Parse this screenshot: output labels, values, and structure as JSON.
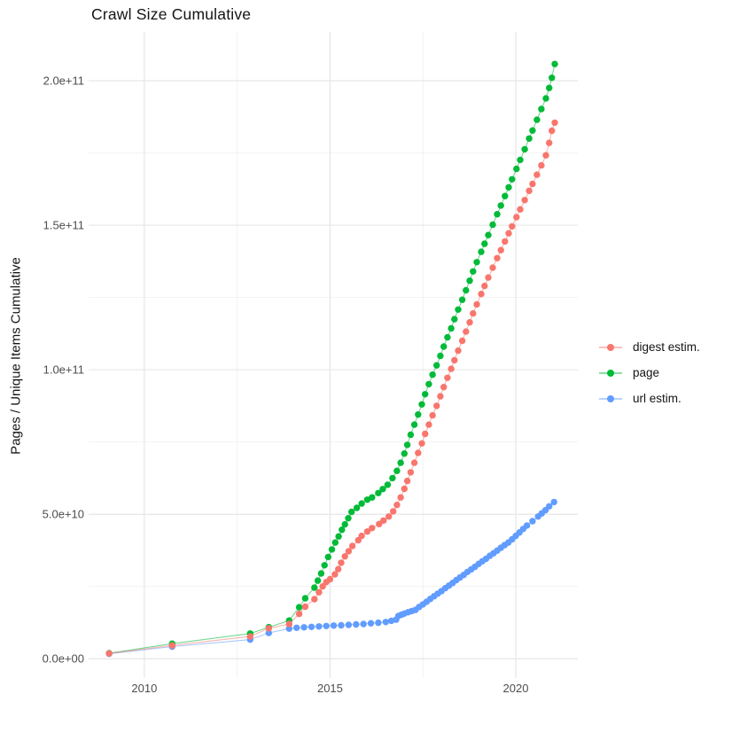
{
  "title": "Crawl Size Cumulative",
  "y_axis": {
    "title": "Pages / Unique Items Cumulative",
    "ticks": [
      {
        "label": "0.0e+00",
        "value_billions": 0
      },
      {
        "label": "5.0e+10",
        "value_billions": 50
      },
      {
        "label": "1.0e+11",
        "value_billions": 100
      },
      {
        "label": "1.5e+11",
        "value_billions": 150
      },
      {
        "label": "2.0e+11",
        "value_billions": 200
      }
    ],
    "minor_values_billions": [
      25,
      75,
      125,
      175
    ]
  },
  "x_axis": {
    "ticks": [
      {
        "label": "2010",
        "value": 2010
      },
      {
        "label": "2015",
        "value": 2015
      },
      {
        "label": "2020",
        "value": 2020
      }
    ],
    "minor_values": [
      2012.5,
      2017.5
    ]
  },
  "legend": {
    "items": [
      {
        "label": "digest estim.",
        "color": "#F8766D"
      },
      {
        "label": "page",
        "color": "#00BA38"
      },
      {
        "label": "url estim.",
        "color": "#619CFF"
      }
    ]
  },
  "colors": {
    "grid_major": "#E4E4E4",
    "grid_minor": "#EFEFEF",
    "tick_text": "#4D4D4D",
    "text": "#141414",
    "background": "#FFFFFF"
  },
  "chart_data": {
    "type": "scatter",
    "title": "Crawl Size Cumulative",
    "xlabel": "",
    "ylabel": "Pages / Unique Items Cumulative",
    "x_unit": "year",
    "value_unit": "pages, billions (1e9)",
    "xlim": [
      2008.5,
      2021.67
    ],
    "ylim_billions": [
      -6.7,
      216.9
    ],
    "grid": "on",
    "legend_position": "right",
    "marker": "point",
    "series": [
      {
        "name": "page",
        "color": "#00BA38",
        "points": [
          [
            2009.05,
            1.9
          ],
          [
            2010.75,
            5.2
          ],
          [
            2012.85,
            8.7
          ],
          [
            2013.35,
            10.9
          ],
          [
            2013.9,
            13.2
          ],
          [
            2014.17,
            17.8
          ],
          [
            2014.33,
            20.9
          ],
          [
            2014.58,
            24.6
          ],
          [
            2014.67,
            27.0
          ],
          [
            2014.76,
            29.5
          ],
          [
            2014.85,
            32.3
          ],
          [
            2014.95,
            35.2
          ],
          [
            2015.05,
            37.8
          ],
          [
            2015.14,
            40.2
          ],
          [
            2015.23,
            42.3
          ],
          [
            2015.32,
            44.6
          ],
          [
            2015.4,
            46.5
          ],
          [
            2015.49,
            48.6
          ],
          [
            2015.58,
            50.8
          ],
          [
            2015.72,
            52.2
          ],
          [
            2015.85,
            53.7
          ],
          [
            2016.0,
            55.0
          ],
          [
            2016.13,
            55.8
          ],
          [
            2016.3,
            57.3
          ],
          [
            2016.42,
            58.7
          ],
          [
            2016.55,
            60.2
          ],
          [
            2016.68,
            62.5
          ],
          [
            2016.8,
            65.0
          ],
          [
            2016.9,
            67.8
          ],
          [
            2017.0,
            71.0
          ],
          [
            2017.08,
            74.0
          ],
          [
            2017.17,
            77.5
          ],
          [
            2017.27,
            81.0
          ],
          [
            2017.37,
            84.5
          ],
          [
            2017.47,
            88.0
          ],
          [
            2017.56,
            91.5
          ],
          [
            2017.66,
            95.0
          ],
          [
            2017.76,
            98.3
          ],
          [
            2017.87,
            101.5
          ],
          [
            2017.97,
            104.8
          ],
          [
            2018.06,
            108.0
          ],
          [
            2018.16,
            111.2
          ],
          [
            2018.26,
            114.3
          ],
          [
            2018.35,
            117.5
          ],
          [
            2018.45,
            120.8
          ],
          [
            2018.56,
            124.2
          ],
          [
            2018.66,
            127.5
          ],
          [
            2018.76,
            130.8
          ],
          [
            2018.85,
            134.0
          ],
          [
            2018.95,
            137.2
          ],
          [
            2019.07,
            140.8
          ],
          [
            2019.16,
            143.6
          ],
          [
            2019.26,
            146.6
          ],
          [
            2019.38,
            150.2
          ],
          [
            2019.5,
            153.8
          ],
          [
            2019.6,
            156.8
          ],
          [
            2019.71,
            160.1
          ],
          [
            2019.81,
            163.1
          ],
          [
            2019.9,
            165.9
          ],
          [
            2020.02,
            169.5
          ],
          [
            2020.12,
            172.6
          ],
          [
            2020.24,
            176.3
          ],
          [
            2020.36,
            180.0
          ],
          [
            2020.45,
            182.8
          ],
          [
            2020.57,
            186.5
          ],
          [
            2020.69,
            190.2
          ],
          [
            2020.81,
            193.9
          ],
          [
            2020.9,
            197.5
          ],
          [
            2020.97,
            201.0
          ],
          [
            2021.05,
            205.8
          ]
        ]
      },
      {
        "name": "url estim.",
        "color": "#619CFF",
        "points": [
          [
            2009.05,
            1.7
          ],
          [
            2010.75,
            4.2
          ],
          [
            2012.85,
            6.6
          ],
          [
            2013.35,
            8.9
          ],
          [
            2013.9,
            10.4
          ],
          [
            2014.1,
            10.7
          ],
          [
            2014.3,
            10.85
          ],
          [
            2014.5,
            11.0
          ],
          [
            2014.7,
            11.15
          ],
          [
            2014.9,
            11.3
          ],
          [
            2015.1,
            11.45
          ],
          [
            2015.3,
            11.55
          ],
          [
            2015.5,
            11.7
          ],
          [
            2015.7,
            11.85
          ],
          [
            2015.9,
            12.0
          ],
          [
            2016.1,
            12.25
          ],
          [
            2016.3,
            12.45
          ],
          [
            2016.5,
            12.7
          ],
          [
            2016.65,
            13.1
          ],
          [
            2016.78,
            13.5
          ],
          [
            2016.84,
            14.8
          ],
          [
            2016.92,
            15.2
          ],
          [
            2017.0,
            15.6
          ],
          [
            2017.1,
            16.1
          ],
          [
            2017.2,
            16.5
          ],
          [
            2017.3,
            16.9
          ],
          [
            2017.4,
            17.9
          ],
          [
            2017.5,
            18.8
          ],
          [
            2017.6,
            19.7
          ],
          [
            2017.7,
            20.7
          ],
          [
            2017.8,
            21.6
          ],
          [
            2017.9,
            22.5
          ],
          [
            2018.0,
            23.4
          ],
          [
            2018.1,
            24.4
          ],
          [
            2018.2,
            25.3
          ],
          [
            2018.3,
            26.2
          ],
          [
            2018.4,
            27.2
          ],
          [
            2018.5,
            28.1
          ],
          [
            2018.6,
            29.0
          ],
          [
            2018.7,
            30.0
          ],
          [
            2018.8,
            30.9
          ],
          [
            2018.9,
            31.8
          ],
          [
            2019.0,
            32.8
          ],
          [
            2019.1,
            33.7
          ],
          [
            2019.2,
            34.6
          ],
          [
            2019.3,
            35.6
          ],
          [
            2019.4,
            36.5
          ],
          [
            2019.5,
            37.4
          ],
          [
            2019.6,
            38.4
          ],
          [
            2019.7,
            39.3
          ],
          [
            2019.8,
            40.2
          ],
          [
            2019.9,
            41.3
          ],
          [
            2020.0,
            42.5
          ],
          [
            2020.1,
            43.7
          ],
          [
            2020.2,
            44.9
          ],
          [
            2020.3,
            46.1
          ],
          [
            2020.45,
            47.6
          ],
          [
            2020.6,
            49.2
          ],
          [
            2020.7,
            50.3
          ],
          [
            2020.8,
            51.4
          ],
          [
            2020.9,
            52.7
          ],
          [
            2021.03,
            54.2
          ]
        ]
      },
      {
        "name": "digest estim.",
        "color": "#F8766D",
        "points": [
          [
            2009.05,
            1.8
          ],
          [
            2010.75,
            4.6
          ],
          [
            2012.85,
            7.7
          ],
          [
            2013.35,
            10.5
          ],
          [
            2013.9,
            12.0
          ],
          [
            2014.17,
            15.5
          ],
          [
            2014.33,
            18.0
          ],
          [
            2014.58,
            20.6
          ],
          [
            2014.7,
            23.0
          ],
          [
            2014.8,
            25.0
          ],
          [
            2014.9,
            26.5
          ],
          [
            2015.0,
            27.5
          ],
          [
            2015.13,
            29.2
          ],
          [
            2015.22,
            31.0
          ],
          [
            2015.3,
            33.2
          ],
          [
            2015.4,
            35.4
          ],
          [
            2015.5,
            37.2
          ],
          [
            2015.6,
            39.0
          ],
          [
            2015.76,
            41.0
          ],
          [
            2015.85,
            42.5
          ],
          [
            2016.0,
            44.0
          ],
          [
            2016.13,
            45.2
          ],
          [
            2016.32,
            46.6
          ],
          [
            2016.44,
            47.8
          ],
          [
            2016.58,
            49.2
          ],
          [
            2016.7,
            51.0
          ],
          [
            2016.8,
            53.2
          ],
          [
            2016.9,
            55.8
          ],
          [
            2017.0,
            58.8
          ],
          [
            2017.08,
            61.5
          ],
          [
            2017.17,
            64.5
          ],
          [
            2017.27,
            67.8
          ],
          [
            2017.37,
            71.2
          ],
          [
            2017.47,
            74.5
          ],
          [
            2017.56,
            77.8
          ],
          [
            2017.66,
            81.0
          ],
          [
            2017.76,
            84.2
          ],
          [
            2017.87,
            87.5
          ],
          [
            2017.97,
            90.8
          ],
          [
            2018.06,
            94.0
          ],
          [
            2018.16,
            97.2
          ],
          [
            2018.26,
            100.3
          ],
          [
            2018.35,
            103.3
          ],
          [
            2018.45,
            106.6
          ],
          [
            2018.56,
            110.0
          ],
          [
            2018.66,
            113.2
          ],
          [
            2018.76,
            116.4
          ],
          [
            2018.85,
            119.5
          ],
          [
            2018.95,
            122.6
          ],
          [
            2019.07,
            126.2
          ],
          [
            2019.16,
            129.0
          ],
          [
            2019.26,
            131.9
          ],
          [
            2019.38,
            135.3
          ],
          [
            2019.5,
            138.6
          ],
          [
            2019.6,
            141.4
          ],
          [
            2019.71,
            144.4
          ],
          [
            2019.81,
            147.2
          ],
          [
            2019.9,
            149.6
          ],
          [
            2020.02,
            152.8
          ],
          [
            2020.12,
            155.5
          ],
          [
            2020.24,
            158.7
          ],
          [
            2020.36,
            161.9
          ],
          [
            2020.45,
            164.3
          ],
          [
            2020.57,
            167.5
          ],
          [
            2020.69,
            170.7
          ],
          [
            2020.81,
            174.2
          ],
          [
            2020.9,
            178.5
          ],
          [
            2020.97,
            182.7
          ],
          [
            2021.05,
            185.5
          ]
        ]
      }
    ]
  }
}
